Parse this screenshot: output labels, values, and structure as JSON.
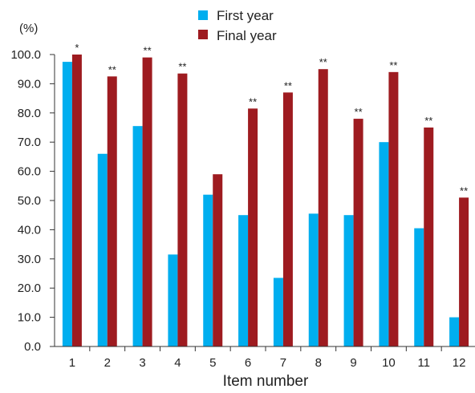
{
  "chart_data": {
    "type": "bar",
    "title": "",
    "unit_label": "(%)",
    "xlabel": "Item number",
    "ylabel": "",
    "ylim": [
      0,
      100
    ],
    "y_ticks": [
      "0.0",
      "10.0",
      "20.0",
      "30.0",
      "40.0",
      "50.0",
      "60.0",
      "70.0",
      "80.0",
      "90.0",
      "100.0"
    ],
    "categories": [
      "1",
      "2",
      "3",
      "4",
      "5",
      "6",
      "7",
      "8",
      "9",
      "10",
      "11",
      "12"
    ],
    "series": [
      {
        "name": "First year",
        "color": "#00aeef",
        "values": [
          97.5,
          66,
          75.5,
          31.5,
          52,
          45,
          23.5,
          45.5,
          45,
          70,
          40.5,
          10
        ]
      },
      {
        "name": "Final year",
        "color": "#9e1b20",
        "values": [
          100,
          92.5,
          99,
          93.5,
          59,
          81.5,
          87,
          95,
          78,
          94,
          75,
          51
        ]
      }
    ],
    "significance": [
      "*",
      "**",
      "**",
      "**",
      "",
      "**",
      "**",
      "**",
      "**",
      "**",
      "**",
      "**"
    ],
    "legend_position": "top-center",
    "grid": false
  }
}
